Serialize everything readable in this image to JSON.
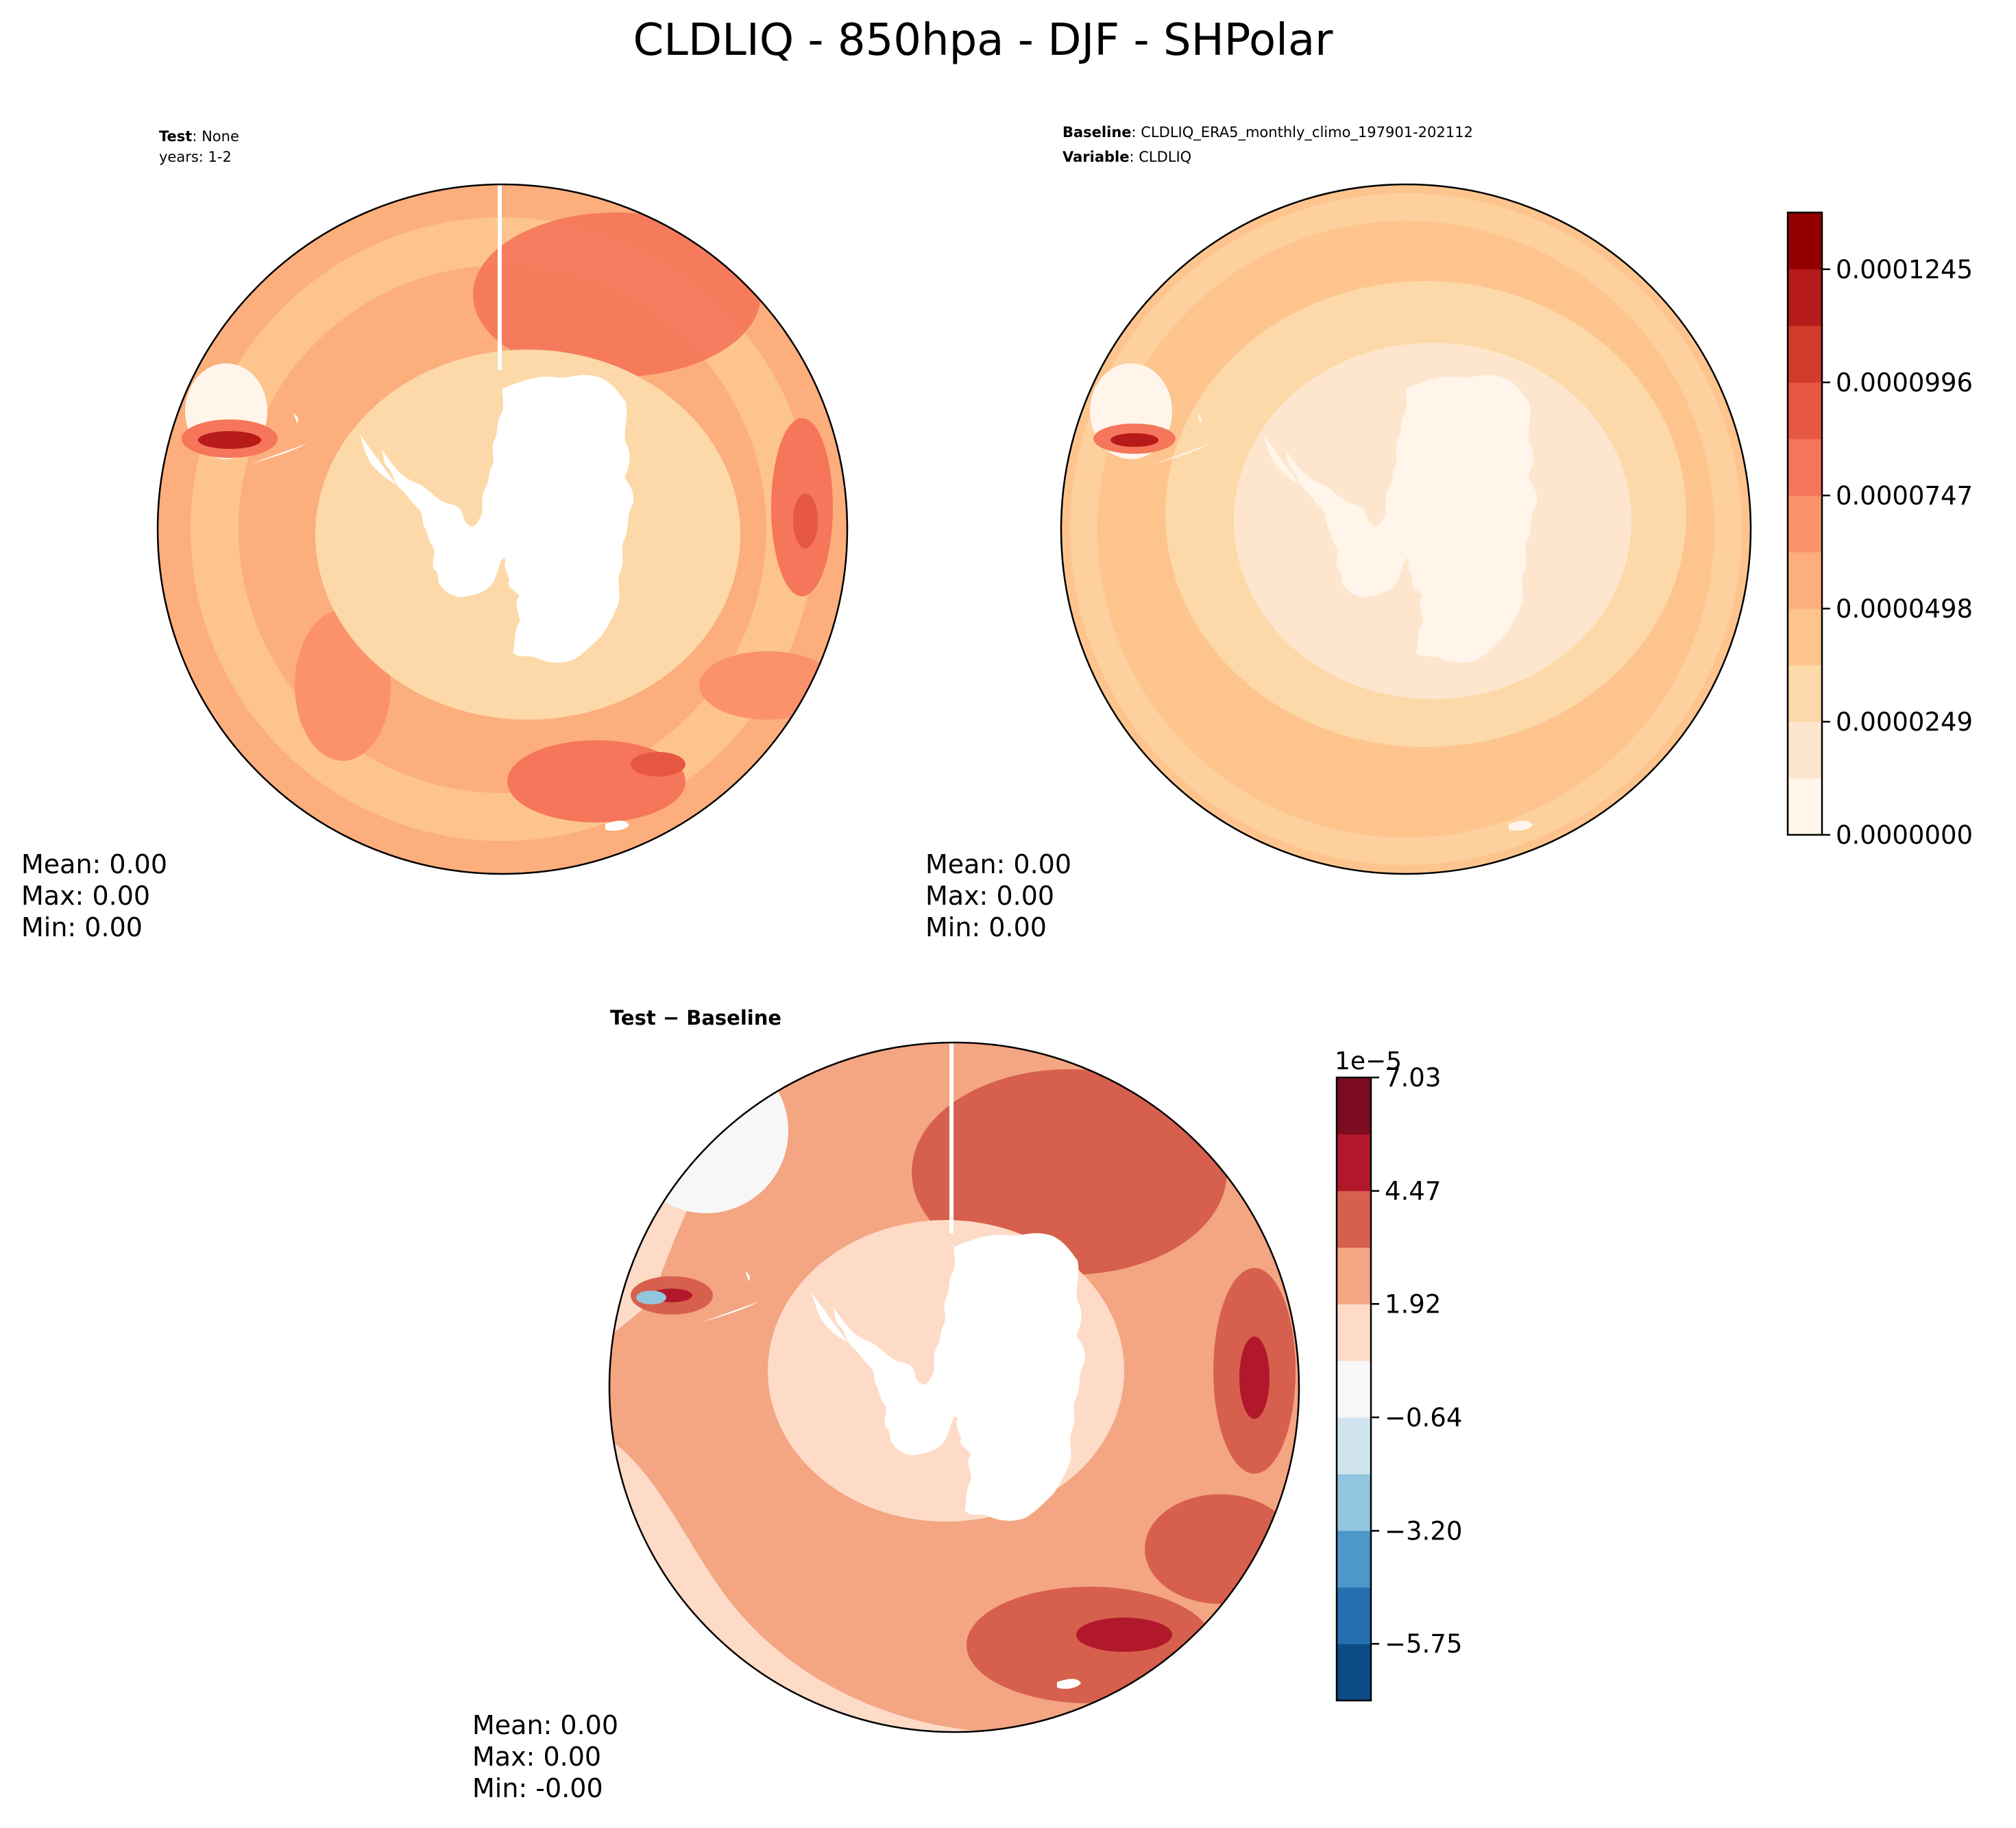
{
  "chart_data": [
    {
      "type": "heatmap",
      "panel": "test",
      "title": "CLDLIQ - 850hpa - DJF - SHPolar",
      "label_bold": "Test",
      "label_value": "None",
      "subtitle_line2": "years: 1-2",
      "projection": "south polar stereographic",
      "stats": {
        "mean": "Mean:  0.00",
        "max": "Max:  0.00",
        "min": "Min:  0.00"
      },
      "colorscale": "reds"
    },
    {
      "type": "heatmap",
      "panel": "baseline",
      "label_bold": "Baseline",
      "label_value": "CLDLIQ_ERA5_monthly_climo_197901-202112",
      "label2_bold": "Variable",
      "label2_value": "CLDLIQ",
      "projection": "south polar stereographic",
      "stats": {
        "mean": "Mean:  0.00",
        "max": "Max:  0.00",
        "min": "Min:  0.00"
      },
      "colorbar": {
        "ticks": [
          "0.0000000",
          "0.0000249",
          "0.0000498",
          "0.0000747",
          "0.0000996",
          "0.0001245"
        ],
        "tick_values": [
          0,
          2.49e-05,
          4.98e-05,
          7.47e-05,
          9.96e-05,
          0.0001245
        ],
        "range": [
          0,
          0.000137
        ],
        "levels": 11,
        "colors": [
          "#fff5eb",
          "#fee6ce",
          "#fdd9a9",
          "#fdc48e",
          "#fcae7d",
          "#fb926b",
          "#f5765a",
          "#e65841",
          "#d03b2c",
          "#b61b1a",
          "#940000"
        ]
      }
    },
    {
      "type": "heatmap",
      "panel": "difference",
      "label_bold": "Test − Baseline",
      "projection": "south polar stereographic",
      "stats": {
        "mean": "Mean:  0.00",
        "max": "Max:  0.00",
        "min": "Min: -0.00"
      },
      "colorbar": {
        "offset_label": "1e−5",
        "ticks": [
          "−5.75",
          "−3.20",
          "−0.64",
          "1.92",
          "4.47",
          "7.03"
        ],
        "tick_values": [
          -5.75,
          -3.2,
          -0.64,
          1.92,
          4.47,
          7.03
        ],
        "range": [
          -7.03,
          7.03
        ],
        "levels": 11,
        "colors": [
          "#0d4b87",
          "#246fb0",
          "#4c98c9",
          "#92c5de",
          "#d1e5f0",
          "#f7f7f7",
          "#fddbc7",
          "#f4a582",
          "#d6604d",
          "#b2182b",
          "#7d0b20"
        ]
      }
    }
  ]
}
